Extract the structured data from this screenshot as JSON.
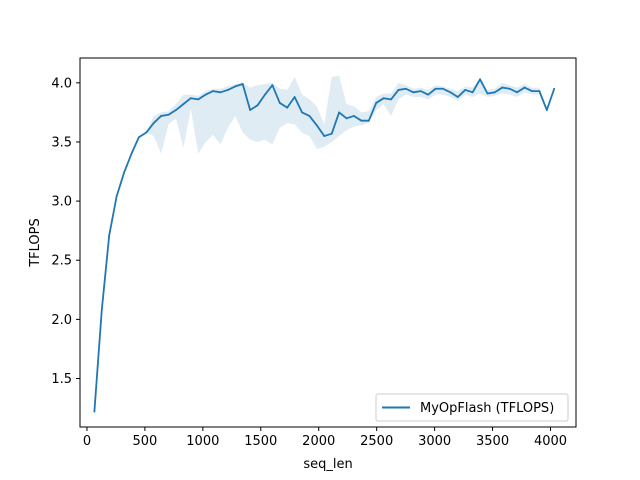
{
  "chart_data": {
    "type": "line",
    "title": "",
    "xlabel": "seq_len",
    "ylabel": "TFLOPS",
    "xlim": [
      -60,
      4220
    ],
    "ylim": [
      1.09,
      4.21
    ],
    "xticks": [
      0,
      500,
      1000,
      1500,
      2000,
      2500,
      3000,
      3500,
      4000
    ],
    "xtick_labels": [
      "0",
      "500",
      "1000",
      "1500",
      "2000",
      "2500",
      "3000",
      "3500",
      "4000"
    ],
    "yticks": [
      1.5,
      2.0,
      2.5,
      3.0,
      3.5,
      4.0
    ],
    "ytick_labels": [
      "1.5",
      "2.0",
      "2.5",
      "3.0",
      "3.5",
      "4.0"
    ],
    "grid": false,
    "legend_position": "lower-right",
    "series": [
      {
        "name": "MyOpFlash (TFLOPS)",
        "color": "#1f77b4",
        "band_color": "#1f77b4",
        "x": [
          64,
          128,
          192,
          256,
          320,
          384,
          448,
          512,
          576,
          640,
          704,
          768,
          832,
          896,
          960,
          1024,
          1088,
          1152,
          1216,
          1280,
          1344,
          1408,
          1472,
          1536,
          1600,
          1664,
          1728,
          1792,
          1856,
          1920,
          1984,
          2048,
          2112,
          2176,
          2240,
          2304,
          2368,
          2432,
          2496,
          2560,
          2624,
          2688,
          2752,
          2816,
          2880,
          2944,
          3008,
          3072,
          3136,
          3200,
          3264,
          3328,
          3392,
          3456,
          3520,
          3584,
          3648,
          3712,
          3776,
          3840,
          3904,
          3968,
          4032
        ],
        "y": [
          1.22,
          2.08,
          2.71,
          3.04,
          3.24,
          3.4,
          3.54,
          3.58,
          3.66,
          3.72,
          3.73,
          3.77,
          3.82,
          3.87,
          3.86,
          3.9,
          3.93,
          3.92,
          3.94,
          3.97,
          3.99,
          3.77,
          3.81,
          3.9,
          3.98,
          3.83,
          3.79,
          3.88,
          3.75,
          3.72,
          3.64,
          3.55,
          3.57,
          3.75,
          3.7,
          3.72,
          3.68,
          3.68,
          3.83,
          3.87,
          3.86,
          3.94,
          3.95,
          3.92,
          3.93,
          3.9,
          3.95,
          3.95,
          3.92,
          3.88,
          3.94,
          3.92,
          4.03,
          3.91,
          3.92,
          3.96,
          3.95,
          3.92,
          3.96,
          3.93,
          3.93,
          3.77,
          3.95
        ],
        "y_lower": [
          1.22,
          2.08,
          2.71,
          3.04,
          3.24,
          3.4,
          3.54,
          3.58,
          3.55,
          3.4,
          3.65,
          3.7,
          3.45,
          3.78,
          3.4,
          3.5,
          3.56,
          3.48,
          3.62,
          3.72,
          3.58,
          3.52,
          3.5,
          3.52,
          3.48,
          3.62,
          3.66,
          3.65,
          3.58,
          3.55,
          3.44,
          3.46,
          3.5,
          3.55,
          3.6,
          3.63,
          3.64,
          3.66,
          3.77,
          3.82,
          3.72,
          3.86,
          3.9,
          3.88,
          3.88,
          3.86,
          3.9,
          3.9,
          3.88,
          3.85,
          3.9,
          3.88,
          3.91,
          3.88,
          3.89,
          3.91,
          3.9,
          3.88,
          3.92,
          3.9,
          3.9,
          3.77,
          3.95
        ],
        "y_upper": [
          1.22,
          2.08,
          2.71,
          3.04,
          3.24,
          3.4,
          3.54,
          3.58,
          3.72,
          3.75,
          3.76,
          3.82,
          3.9,
          3.9,
          3.89,
          3.93,
          3.95,
          3.95,
          3.97,
          3.99,
          4.0,
          3.96,
          3.98,
          3.99,
          4.0,
          3.95,
          3.94,
          4.05,
          3.9,
          3.86,
          3.8,
          3.65,
          4.05,
          4.06,
          3.82,
          3.8,
          3.75,
          3.76,
          3.88,
          3.91,
          3.91,
          4.0,
          3.98,
          3.95,
          3.96,
          3.94,
          3.98,
          3.97,
          3.95,
          3.93,
          3.97,
          3.96,
          4.04,
          3.94,
          3.95,
          4.0,
          3.98,
          3.96,
          3.99,
          3.96,
          3.96,
          3.77,
          3.95
        ]
      }
    ]
  }
}
